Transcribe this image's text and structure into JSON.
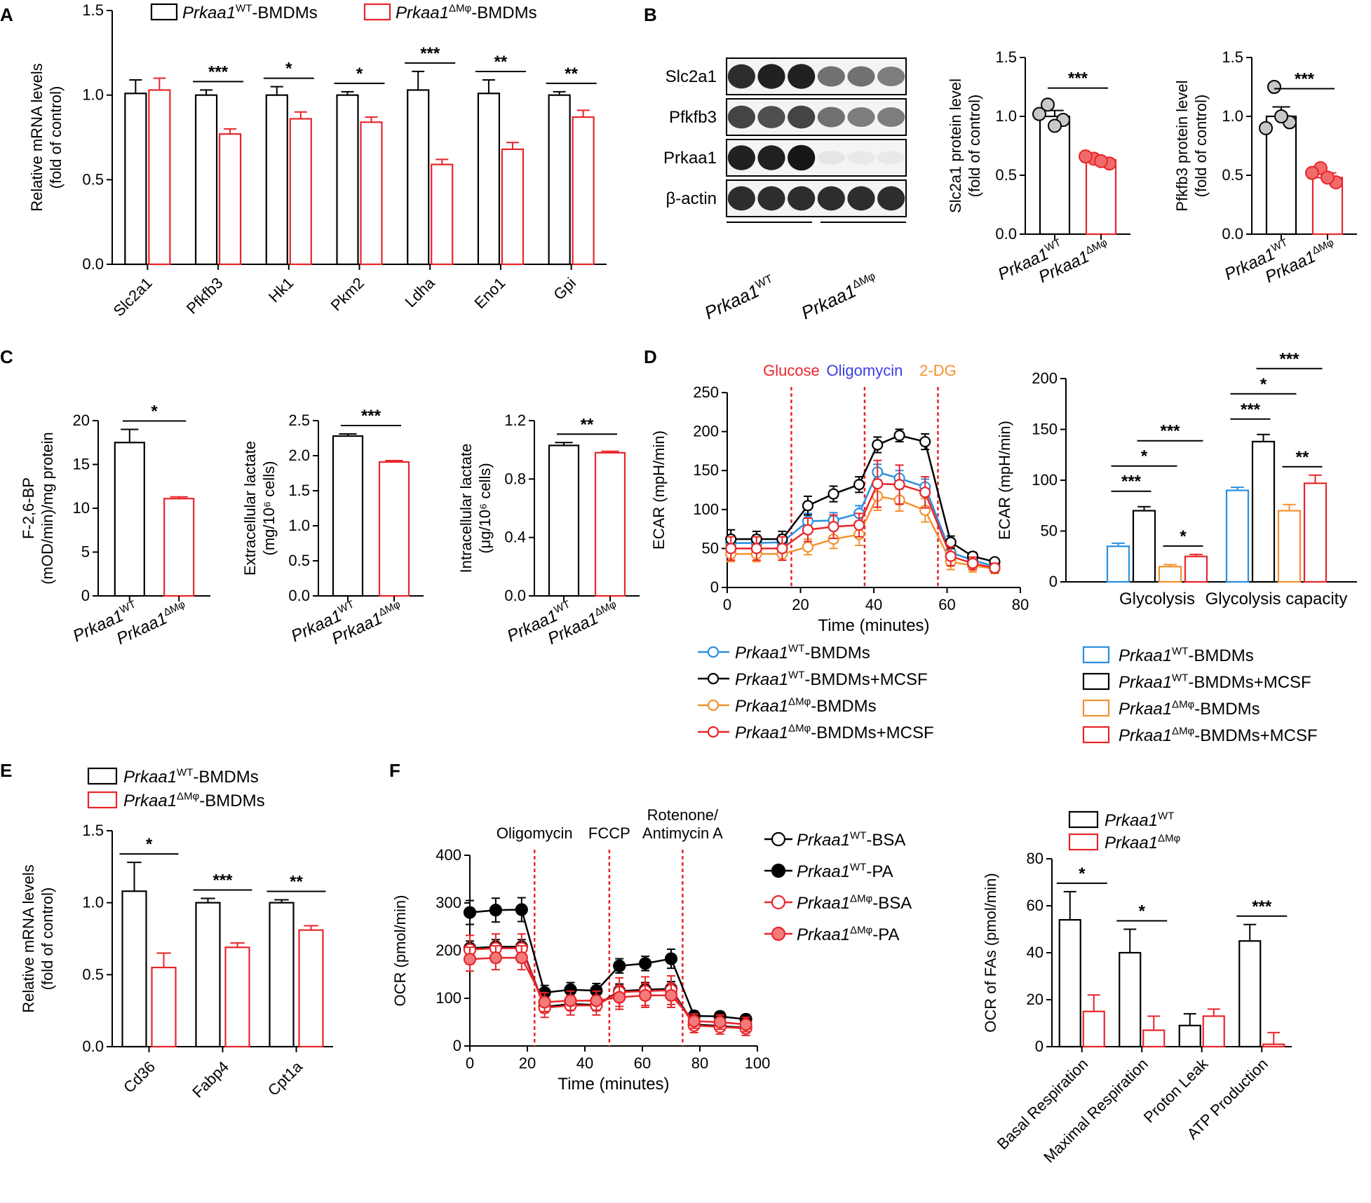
{
  "colors": {
    "wt": "#000000",
    "ko": "#e8252a",
    "blue": "#2a8fe0",
    "orange": "#f2922e",
    "red": "#e8252a",
    "gray": "#c8c8c8"
  },
  "panel_labels": {
    "A": "A",
    "B": "B",
    "C": "C",
    "D": "D",
    "E": "E",
    "F": "F"
  },
  "chart_data": [
    {
      "id": "A",
      "type": "bar",
      "ylabel": [
        "Relative mRNA levels",
        "(fold of control)"
      ],
      "ylim": [
        0,
        1.5
      ],
      "yticks": [
        "0.0",
        "0.5",
        "1.0",
        "1.5"
      ],
      "categories": [
        "Slc2a1",
        "Pfkfb3",
        "Hk1",
        "Pkm2",
        "Ldha",
        "Eno1",
        "Gpi"
      ],
      "series": [
        {
          "name": "Prkaa1WT-BMDMs",
          "legend": {
            "main": "Prkaa1",
            "sup": "WT",
            "rest": "-BMDMs"
          },
          "color": "#000000",
          "values": [
            1.01,
            1.0,
            1.0,
            1.0,
            1.03,
            1.01,
            1.0
          ],
          "errors": [
            0.08,
            0.03,
            0.05,
            0.02,
            0.11,
            0.08,
            0.02
          ]
        },
        {
          "name": "Prkaa1ΔMφ-BMDMs",
          "legend": {
            "main": "Prkaa1",
            "sup": "ΔMφ",
            "rest": "-BMDMs"
          },
          "color": "#e8252a",
          "values": [
            1.03,
            0.77,
            0.86,
            0.84,
            0.59,
            0.68,
            0.87
          ],
          "errors": [
            0.07,
            0.03,
            0.04,
            0.03,
            0.03,
            0.04,
            0.04
          ]
        }
      ],
      "significance": [
        "",
        "***",
        "*",
        "*",
        "***",
        "**",
        "**"
      ]
    },
    {
      "id": "B1",
      "type": "bar",
      "ylabel": [
        "Slc2a1 protein level",
        "(fold of control)"
      ],
      "ylim": [
        0,
        1.5
      ],
      "yticks": [
        "0.0",
        "0.5",
        "1.0",
        "1.5"
      ],
      "categories": [
        {
          "main": "Prkaa1",
          "sup": "WT"
        },
        {
          "main": "Prkaa1",
          "sup": "ΔMφ"
        }
      ],
      "values": [
        1.0,
        0.63
      ],
      "errors": [
        0.05,
        0.02
      ],
      "points": [
        [
          1.1,
          0.97,
          1.02,
          0.92
        ],
        [
          0.64,
          0.6,
          0.66,
          0.62
        ]
      ],
      "significance": "***"
    },
    {
      "id": "B2",
      "type": "bar",
      "ylabel": [
        "Pfkfb3 protein level",
        "(fold of control)"
      ],
      "ylim": [
        0,
        1.5
      ],
      "yticks": [
        "0.0",
        "0.5",
        "1.0",
        "1.5"
      ],
      "categories": [
        {
          "main": "Prkaa1",
          "sup": "WT"
        },
        {
          "main": "Prkaa1",
          "sup": "ΔMφ"
        }
      ],
      "values": [
        1.0,
        0.48
      ],
      "errors": [
        0.08,
        0.04
      ],
      "points": [
        [
          1.25,
          0.95,
          0.9,
          1.0
        ],
        [
          0.56,
          0.44,
          0.52,
          0.48
        ]
      ],
      "significance": "***"
    },
    {
      "id": "C1",
      "type": "bar",
      "ylabel": [
        "F-2,6-BP",
        "(mOD/min)/mg protein"
      ],
      "ylim": [
        0,
        20
      ],
      "yticks": [
        "0",
        "5",
        "10",
        "15",
        "20"
      ],
      "categories": [
        {
          "main": "Prkaa1",
          "sup": "WT"
        },
        {
          "main": "Prkaa1",
          "sup": "ΔMφ"
        }
      ],
      "values": [
        17.5,
        11.1
      ],
      "errors": [
        1.5,
        0.2
      ],
      "significance": "*"
    },
    {
      "id": "C2",
      "type": "bar",
      "ylabel": [
        "Extracellular lactate",
        "(mg/10⁶ cells)"
      ],
      "ylim": [
        0,
        2.5
      ],
      "yticks": [
        "0.0",
        "0.5",
        "1.0",
        "1.5",
        "2.0",
        "2.5"
      ],
      "categories": [
        {
          "main": "Prkaa1",
          "sup": "WT"
        },
        {
          "main": "Prkaa1",
          "sup": "ΔMφ"
        }
      ],
      "values": [
        2.28,
        1.91
      ],
      "errors": [
        0.03,
        0.02
      ],
      "significance": "***"
    },
    {
      "id": "C3",
      "type": "bar",
      "ylabel": [
        "Intracellular lactate",
        "(μg/10⁶ cells)"
      ],
      "ylim": [
        0,
        1.2
      ],
      "yticks": [
        "0.0",
        "0.4",
        "0.8",
        "1.2"
      ],
      "categories": [
        {
          "main": "Prkaa1",
          "sup": "WT"
        },
        {
          "main": "Prkaa1",
          "sup": "ΔMφ"
        }
      ],
      "values": [
        1.03,
        0.98
      ],
      "errors": [
        0.02,
        0.01
      ],
      "significance": "**"
    },
    {
      "id": "D1",
      "type": "line",
      "xlabel": "Time (minutes)",
      "ylabel": "ECAR (mpH/min)",
      "xlim": [
        0,
        80
      ],
      "ylim": [
        0,
        250
      ],
      "xticks": [
        "0",
        "20",
        "40",
        "60",
        "80"
      ],
      "yticks": [
        "0",
        "50",
        "100",
        "150",
        "200",
        "250"
      ],
      "x": [
        1,
        8,
        15,
        22,
        29,
        36,
        41,
        47,
        54,
        61,
        67,
        73
      ],
      "injections": [
        {
          "label": "Glucose",
          "x": 17.5,
          "color": "#e8252a"
        },
        {
          "label": "Oligomycin",
          "x": 37.5,
          "color": "#3b3fe0"
        },
        {
          "label": "2-DG",
          "x": 57.5,
          "color": "#f2922e"
        }
      ],
      "series": [
        {
          "name": "Prkaa1WT-BMDMs",
          "legend": {
            "main": "Prkaa1",
            "sup": "WT",
            "rest": "-BMDMs"
          },
          "color": "#2a8fe0",
          "values": [
            57,
            57,
            58,
            85,
            86,
            95,
            148,
            140,
            129,
            45,
            35,
            27
          ],
          "errors": [
            10,
            10,
            10,
            10,
            10,
            10,
            10,
            10,
            10,
            8,
            6,
            6
          ]
        },
        {
          "name": "Prkaa1WT-BMDMs+MCSF",
          "legend": {
            "main": "Prkaa1",
            "sup": "WT",
            "rest": "-BMDMs+MCSF"
          },
          "color": "#000000",
          "values": [
            62,
            62,
            62,
            105,
            120,
            132,
            183,
            195,
            187,
            58,
            40,
            33
          ],
          "errors": [
            12,
            10,
            10,
            12,
            10,
            10,
            10,
            8,
            10,
            8,
            5,
            4
          ]
        },
        {
          "name": "Prkaa1ΔMφ-BMDMs",
          "legend": {
            "main": "Prkaa1",
            "sup": "ΔMφ",
            "rest": "-BMDMs"
          },
          "color": "#f2922e",
          "values": [
            43,
            43,
            43,
            52,
            62,
            68,
            117,
            112,
            99,
            33,
            28,
            24
          ],
          "errors": [
            10,
            10,
            8,
            10,
            12,
            14,
            18,
            14,
            15,
            10,
            8,
            6
          ]
        },
        {
          "name": "Prkaa1ΔMφ-BMDMs+MCSF",
          "legend": {
            "main": "Prkaa1",
            "sup": "ΔMφ",
            "rest": "-BMDMs+MCSF"
          },
          "color": "#e8252a",
          "values": [
            50,
            50,
            50,
            74,
            78,
            80,
            133,
            132,
            122,
            40,
            31,
            25
          ],
          "errors": [
            15,
            15,
            15,
            15,
            15,
            15,
            30,
            25,
            20,
            12,
            8,
            6
          ]
        }
      ]
    },
    {
      "id": "D2",
      "type": "bar",
      "ylabel": "ECAR (mpH/min)",
      "ylim": [
        0,
        200
      ],
      "yticks": [
        "0",
        "50",
        "100",
        "150",
        "200"
      ],
      "categories": [
        "Glycolysis",
        "Glycolysis capacity"
      ],
      "series": [
        {
          "name": "Prkaa1WT-BMDMs",
          "legend": {
            "main": "Prkaa1",
            "sup": "WT",
            "rest": "-BMDMs"
          },
          "color": "#2a8fe0",
          "values": [
            35,
            90
          ],
          "errors": [
            3,
            3
          ]
        },
        {
          "name": "Prkaa1WT-BMDMs+MCSF",
          "legend": {
            "main": "Prkaa1",
            "sup": "WT",
            "rest": "-BMDMs+MCSF"
          },
          "color": "#000000",
          "values": [
            70,
            138
          ],
          "errors": [
            4,
            7
          ]
        },
        {
          "name": "Prkaa1ΔMφ-BMDMs",
          "legend": {
            "main": "Prkaa1",
            "sup": "ΔMφ",
            "rest": "-BMDMs"
          },
          "color": "#f2922e",
          "values": [
            15,
            70
          ],
          "errors": [
            2,
            6
          ]
        },
        {
          "name": "Prkaa1ΔMφ-BMDMs+MCSF",
          "legend": {
            "main": "Prkaa1",
            "sup": "ΔMφ",
            "rest": "-BMDMs+MCSF"
          },
          "color": "#e8252a",
          "values": [
            25,
            97
          ],
          "errors": [
            2,
            8
          ]
        }
      ],
      "significance": [
        {
          "category": 0,
          "from": 0,
          "to": 1,
          "label": "***",
          "level": 0
        },
        {
          "category": 0,
          "from": 0,
          "to": 2,
          "label": "*",
          "level": 1
        },
        {
          "category": 0,
          "from": 1,
          "to": 3,
          "label": "***",
          "level": 2
        },
        {
          "category": 0,
          "from": 2,
          "to": 3,
          "label": "*",
          "level": -1
        },
        {
          "category": 1,
          "from": 0,
          "to": 1,
          "label": "***",
          "level": 0
        },
        {
          "category": 1,
          "from": 0,
          "to": 2,
          "label": "*",
          "level": 1
        },
        {
          "category": 1,
          "from": 1,
          "to": 3,
          "label": "***",
          "level": 2
        },
        {
          "category": 1,
          "from": 2,
          "to": 3,
          "label": "**",
          "level": -1
        }
      ]
    },
    {
      "id": "E",
      "type": "bar",
      "ylabel": [
        "Relative mRNA levels",
        "(fold of control)"
      ],
      "ylim": [
        0,
        1.5
      ],
      "yticks": [
        "0.0",
        "0.5",
        "1.0",
        "1.5"
      ],
      "categories": [
        "Cd36",
        "Fabp4",
        "Cpt1a"
      ],
      "series": [
        {
          "name": "Prkaa1WT-BMDMs",
          "legend": {
            "main": "Prkaa1",
            "sup": "WT",
            "rest": "-BMDMs"
          },
          "color": "#000000",
          "values": [
            1.08,
            1.0,
            1.0
          ],
          "errors": [
            0.2,
            0.03,
            0.02
          ]
        },
        {
          "name": "Prkaa1ΔMφ-BMDMs",
          "legend": {
            "main": "Prkaa1",
            "sup": "ΔMφ",
            "rest": "-BMDMs"
          },
          "color": "#e8252a",
          "values": [
            0.55,
            0.69,
            0.81
          ],
          "errors": [
            0.1,
            0.03,
            0.03
          ]
        }
      ],
      "significance": [
        "*",
        "***",
        "**"
      ]
    },
    {
      "id": "F1",
      "type": "line",
      "xlabel": "Time (minutes)",
      "ylabel": "OCR (pmol/min)",
      "xlim": [
        0,
        100
      ],
      "ylim": [
        0,
        400
      ],
      "xticks": [
        "0",
        "20",
        "40",
        "60",
        "80",
        "100"
      ],
      "yticks": [
        "0",
        "100",
        "200",
        "300",
        "400"
      ],
      "x": [
        0,
        9,
        18,
        26,
        35,
        44,
        52,
        61,
        70,
        78,
        87,
        96
      ],
      "injections": [
        {
          "label": "Oligomycin",
          "x": 22.5,
          "color": "#e8252a"
        },
        {
          "label": "FCCP",
          "x": 48.5,
          "color": "#e8252a"
        },
        {
          "label": "Rotenone/\nAntimycin A",
          "x": 74,
          "color": "#e8252a"
        }
      ],
      "series": [
        {
          "name": "Prkaa1WT-BSA",
          "legend": {
            "main": "Prkaa1",
            "sup": "WT",
            "rest": "-BSA"
          },
          "color": "#000000",
          "filled": false,
          "values": [
            205,
            208,
            208,
            82,
            88,
            86,
            115,
            118,
            120,
            45,
            42,
            38
          ],
          "errors": [
            15,
            15,
            15,
            12,
            12,
            12,
            15,
            15,
            15,
            10,
            10,
            10
          ]
        },
        {
          "name": "Prkaa1WT-PA",
          "legend": {
            "main": "Prkaa1",
            "sup": "WT",
            "rest": "-PA"
          },
          "color": "#000000",
          "filled": true,
          "values": [
            280,
            285,
            286,
            112,
            118,
            116,
            168,
            173,
            183,
            63,
            62,
            56
          ],
          "errors": [
            25,
            25,
            25,
            15,
            15,
            15,
            15,
            15,
            20,
            10,
            10,
            10
          ]
        },
        {
          "name": "Prkaa1ΔMφ-BSA",
          "legend": {
            "main": "Prkaa1",
            "sup": "ΔMφ",
            "rest": "-BSA"
          },
          "color": "#e8252a",
          "filled": false,
          "values": [
            202,
            205,
            205,
            80,
            85,
            85,
            113,
            115,
            117,
            43,
            40,
            37
          ],
          "errors": [
            30,
            30,
            30,
            20,
            20,
            20,
            30,
            30,
            30,
            15,
            15,
            15
          ]
        },
        {
          "name": "Prkaa1ΔMφ-PA",
          "legend": {
            "main": "Prkaa1",
            "sup": "ΔMφ",
            "rest": "-PA"
          },
          "color": "#e8252a",
          "filled": true,
          "values": [
            182,
            185,
            185,
            92,
            95,
            95,
            102,
            106,
            106,
            52,
            50,
            45
          ],
          "errors": [
            25,
            25,
            25,
            20,
            20,
            20,
            25,
            25,
            25,
            15,
            15,
            15
          ]
        }
      ]
    },
    {
      "id": "F2",
      "type": "bar",
      "ylabel": "OCR of FAs (pmol/min)",
      "ylim": [
        0,
        80
      ],
      "yticks": [
        "0",
        "20",
        "40",
        "60",
        "80"
      ],
      "categories": [
        "Basal Respiration",
        "Maximal Respiration",
        "Proton Leak",
        "ATP Production"
      ],
      "series": [
        {
          "name": "Prkaa1WT",
          "legend": {
            "main": "Prkaa1",
            "sup": "WT",
            "rest": ""
          },
          "color": "#000000",
          "values": [
            54,
            40,
            9,
            45
          ],
          "errors": [
            12,
            10,
            5,
            7
          ]
        },
        {
          "name": "Prkaa1ΔMφ",
          "legend": {
            "main": "Prkaa1",
            "sup": "ΔMφ",
            "rest": ""
          },
          "color": "#e8252a",
          "values": [
            15,
            7,
            13,
            1
          ],
          "errors": [
            7,
            6,
            3,
            5
          ]
        }
      ],
      "significance": [
        "*",
        "*",
        "",
        "***"
      ]
    }
  ],
  "blot": {
    "rows": [
      "Slc2a1",
      "Pfkfb3",
      "Prkaa1",
      "β-actin"
    ],
    "groups": [
      {
        "main": "Prkaa1",
        "sup": "WT"
      },
      {
        "main": "Prkaa1",
        "sup": "ΔMφ"
      }
    ],
    "band_strength": [
      [
        0.85,
        0.9,
        0.9,
        0.55,
        0.55,
        0.5
      ],
      [
        0.75,
        0.7,
        0.75,
        0.55,
        0.5,
        0.5
      ],
      [
        0.9,
        0.9,
        0.95,
        0.05,
        0.03,
        0.03
      ],
      [
        0.85,
        0.85,
        0.85,
        0.85,
        0.85,
        0.85
      ]
    ]
  }
}
